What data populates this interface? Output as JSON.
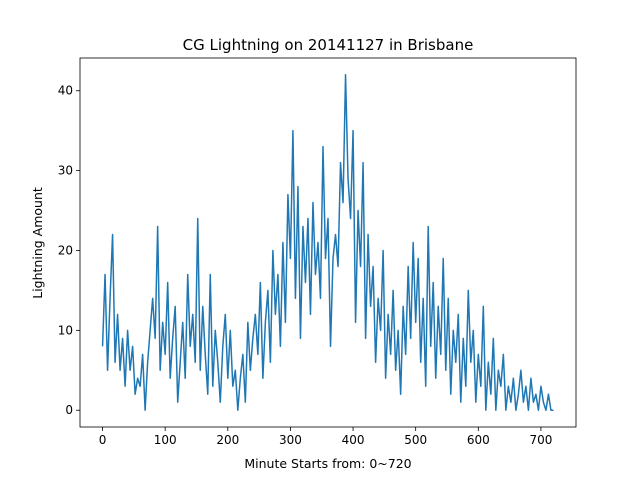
{
  "chart_data": {
    "type": "line",
    "title": "CG Lightning on 20141127 in Brisbane",
    "xlabel": "Minute Starts from: 0~720",
    "ylabel": "Lightning Amount",
    "xlim": [
      -36,
      756
    ],
    "ylim": [
      -2.1,
      44.1
    ],
    "xticks": [
      0,
      100,
      200,
      300,
      400,
      500,
      600,
      700
    ],
    "yticks": [
      0,
      10,
      20,
      30,
      40
    ],
    "grid": false,
    "legend": "none",
    "series": [
      {
        "color": "#1f77b4",
        "x": [
          0,
          4,
          8,
          12,
          16,
          20,
          24,
          28,
          32,
          36,
          40,
          44,
          48,
          52,
          56,
          60,
          64,
          68,
          72,
          76,
          80,
          84,
          88,
          92,
          96,
          100,
          104,
          108,
          112,
          116,
          120,
          124,
          128,
          132,
          136,
          140,
          144,
          148,
          152,
          156,
          160,
          164,
          168,
          172,
          176,
          180,
          184,
          188,
          192,
          196,
          200,
          204,
          208,
          212,
          216,
          220,
          224,
          228,
          232,
          236,
          240,
          244,
          248,
          252,
          256,
          260,
          264,
          268,
          272,
          276,
          280,
          284,
          288,
          292,
          296,
          300,
          304,
          308,
          312,
          316,
          320,
          324,
          328,
          332,
          336,
          340,
          344,
          348,
          352,
          356,
          360,
          364,
          368,
          372,
          376,
          380,
          384,
          388,
          392,
          396,
          400,
          404,
          408,
          412,
          416,
          420,
          424,
          428,
          432,
          436,
          440,
          444,
          448,
          452,
          456,
          460,
          464,
          468,
          472,
          476,
          480,
          484,
          488,
          492,
          496,
          500,
          504,
          508,
          512,
          516,
          520,
          524,
          528,
          532,
          536,
          540,
          544,
          548,
          552,
          556,
          560,
          564,
          568,
          572,
          576,
          580,
          584,
          588,
          592,
          596,
          600,
          604,
          608,
          612,
          616,
          620,
          624,
          628,
          632,
          636,
          640,
          644,
          648,
          652,
          656,
          660,
          664,
          668,
          672,
          676,
          680,
          684,
          688,
          692,
          696,
          700,
          704,
          708,
          712,
          716,
          720
        ],
        "y": [
          8,
          17,
          5,
          14,
          22,
          6,
          12,
          5,
          9,
          3,
          10,
          5,
          8,
          2,
          4,
          3,
          7,
          0,
          6,
          10,
          14,
          9,
          23,
          5,
          11,
          7,
          16,
          4,
          9,
          13,
          1,
          6,
          11,
          4,
          17,
          8,
          12,
          6,
          24,
          5,
          13,
          7,
          2,
          17,
          3,
          10,
          6,
          1,
          8,
          12,
          4,
          10,
          3,
          5,
          0,
          4,
          7,
          1,
          11,
          5,
          9,
          12,
          7,
          16,
          4,
          11,
          15,
          6,
          20,
          12,
          17,
          8,
          21,
          11,
          27,
          19,
          35,
          14,
          28,
          9,
          23,
          16,
          24,
          12,
          26,
          17,
          21,
          14,
          33,
          19,
          24,
          8,
          19,
          22,
          18,
          31,
          26,
          42,
          29,
          24,
          35,
          11,
          25,
          18,
          31,
          9,
          22,
          13,
          18,
          6,
          14,
          10,
          20,
          4,
          12,
          7,
          15,
          5,
          10,
          2,
          13,
          7,
          18,
          9,
          21,
          11,
          19,
          6,
          14,
          3,
          23,
          8,
          16,
          4,
          13,
          7,
          19,
          5,
          14,
          2,
          10,
          6,
          12,
          1,
          9,
          3,
          15,
          6,
          10,
          1,
          7,
          3,
          13,
          0,
          6,
          2,
          9,
          0,
          5,
          3,
          7,
          0,
          3,
          1,
          4,
          0,
          2,
          5,
          1,
          3,
          0,
          4,
          1,
          2,
          0,
          3,
          1,
          0,
          2,
          0,
          0
        ]
      }
    ]
  }
}
